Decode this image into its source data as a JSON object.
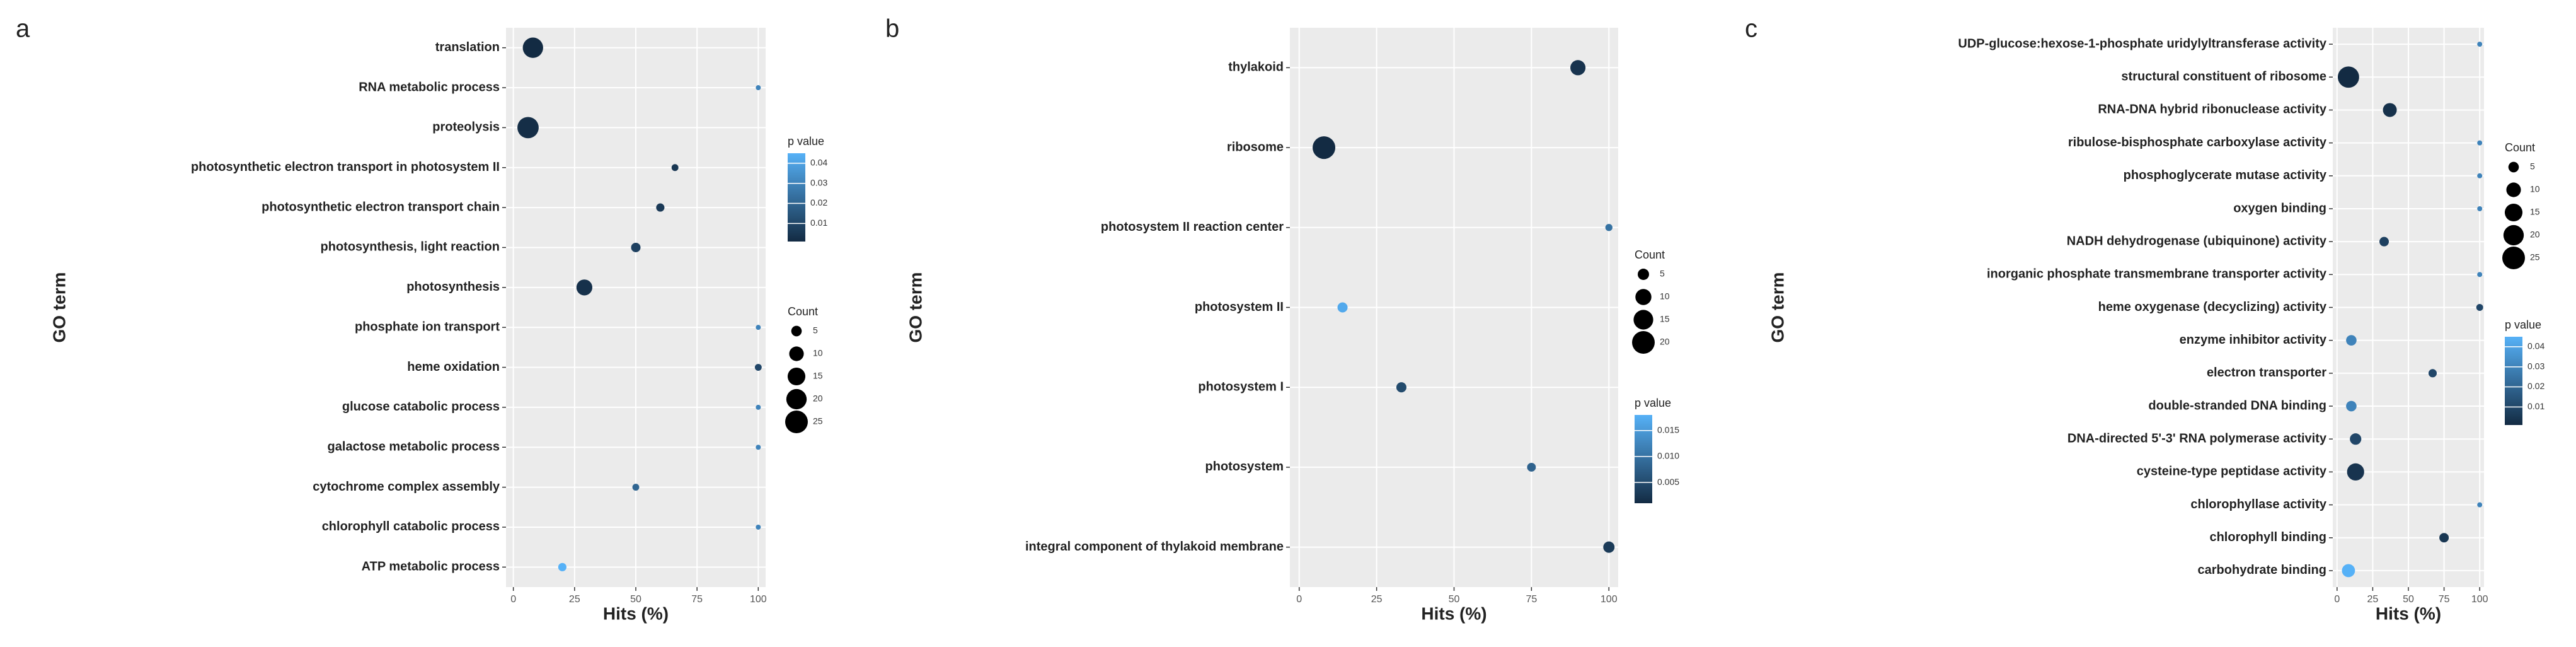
{
  "chart_data": [
    {
      "type": "scatter",
      "panel": "a",
      "x_label": "Hits (%)",
      "y_label": "GO term",
      "categories": [
        "translation",
        "RNA metabolic process",
        "proteolysis",
        "photosynthetic electron transport in photosystem II",
        "photosynthetic electron transport chain",
        "photosynthesis, light reaction",
        "photosynthesis",
        "phosphate ion transport",
        "heme oxidation",
        "glucose catabolic process",
        "galactose metabolic process",
        "cytochrome complex assembly",
        "chlorophyll catabolic process",
        "ATP metabolic process"
      ],
      "values": [
        8,
        100,
        6,
        66,
        60,
        50,
        29,
        100,
        100,
        100,
        100,
        50,
        100,
        20
      ],
      "counts": [
        20,
        1,
        22,
        2,
        3,
        4,
        12,
        1,
        2,
        1,
        1,
        2,
        1,
        3
      ],
      "p_values": [
        0.001,
        0.03,
        0.002,
        0.005,
        0.006,
        0.008,
        0.003,
        0.03,
        0.01,
        0.03,
        0.03,
        0.02,
        0.03,
        0.045
      ],
      "xlim": [
        -3,
        103
      ],
      "xticks": [
        0,
        25,
        50,
        75,
        100
      ],
      "grid": true,
      "color_legend_title": "p value",
      "color_lim": [
        0.001,
        0.045
      ],
      "color_ticks": [
        0.04,
        0.03,
        0.02,
        0.01
      ],
      "colors": {
        "low": "#132B43",
        "high": "#56B1F7"
      },
      "size_legend_title": "Count",
      "size_lim": [
        1,
        25
      ],
      "size_ticks": [
        5,
        10,
        15,
        20,
        25
      ]
    },
    {
      "type": "scatter",
      "panel": "b",
      "x_label": "Hits (%)",
      "y_label": "GO term",
      "categories": [
        "thylakoid",
        "ribosome",
        "photosystem II reaction center",
        "photosystem II",
        "photosystem I",
        "photosystem",
        "integral component of thylakoid membrane"
      ],
      "values": [
        90,
        8,
        100,
        14,
        33,
        75,
        100
      ],
      "counts": [
        9,
        20,
        2,
        4,
        4,
        3,
        5
      ],
      "p_values": [
        0.002,
        0.001,
        0.01,
        0.017,
        0.005,
        0.008,
        0.003
      ],
      "xlim": [
        -3,
        103
      ],
      "xticks": [
        0,
        25,
        50,
        75,
        100
      ],
      "grid": true,
      "color_legend_title": "p value",
      "color_lim": [
        0.001,
        0.018
      ],
      "color_ticks": [
        0.015,
        {
          "value": 0.01,
          "label": "0.010"
        },
        0.005
      ],
      "colors": {
        "low": "#132B43",
        "high": "#56B1F7"
      },
      "size_legend_title": "Count",
      "size_lim": [
        1,
        20
      ],
      "size_ticks": [
        5,
        10,
        15,
        20
      ]
    },
    {
      "type": "scatter",
      "panel": "c",
      "x_label": "Hits (%)",
      "y_label": "GO term",
      "categories": [
        "UDP-glucose:hexose-1-phosphate uridylyltransferase activity",
        "structural constituent of ribosome",
        "RNA-DNA hybrid ribonuclease activity",
        "ribulose-bisphosphate carboxylase activity",
        "phosphoglycerate mutase activity",
        "oxygen binding",
        "NADH dehydrogenase (ubiquinone) activity",
        "inorganic phosphate transmembrane transporter activity",
        "heme oxygenase (decyclizing) activity",
        "enzyme inhibitor activity",
        "electron transporter",
        "double-stranded DNA binding",
        "DNA-directed 5'-3' RNA polymerase activity",
        "cysteine-type peptidase activity",
        "chlorophyllase activity",
        "chlorophyll binding",
        "carbohydrate binding"
      ],
      "values": [
        100,
        8,
        37,
        100,
        100,
        100,
        33,
        100,
        100,
        10,
        67,
        10,
        13,
        13,
        100,
        75,
        8
      ],
      "counts": [
        1,
        22,
        9,
        1,
        1,
        1,
        4,
        1,
        2,
        5,
        3,
        5,
        6,
        14,
        1,
        4,
        8
      ],
      "p_values": [
        0.03,
        0.001,
        0.003,
        0.03,
        0.03,
        0.03,
        0.008,
        0.03,
        0.01,
        0.03,
        0.01,
        0.03,
        0.01,
        0.004,
        0.03,
        0.005,
        0.045
      ],
      "xlim": [
        -3,
        103
      ],
      "xticks": [
        0,
        25,
        50,
        75,
        100
      ],
      "grid": true,
      "color_legend_title": "p value",
      "color_lim": [
        0.001,
        0.045
      ],
      "color_ticks": [
        0.04,
        0.03,
        0.02,
        0.01
      ],
      "colors": {
        "low": "#132B43",
        "high": "#56B1F7"
      },
      "size_legend_title": "Count",
      "size_lim": [
        1,
        25
      ],
      "size_ticks": [
        5,
        10,
        15,
        20,
        25
      ]
    }
  ]
}
